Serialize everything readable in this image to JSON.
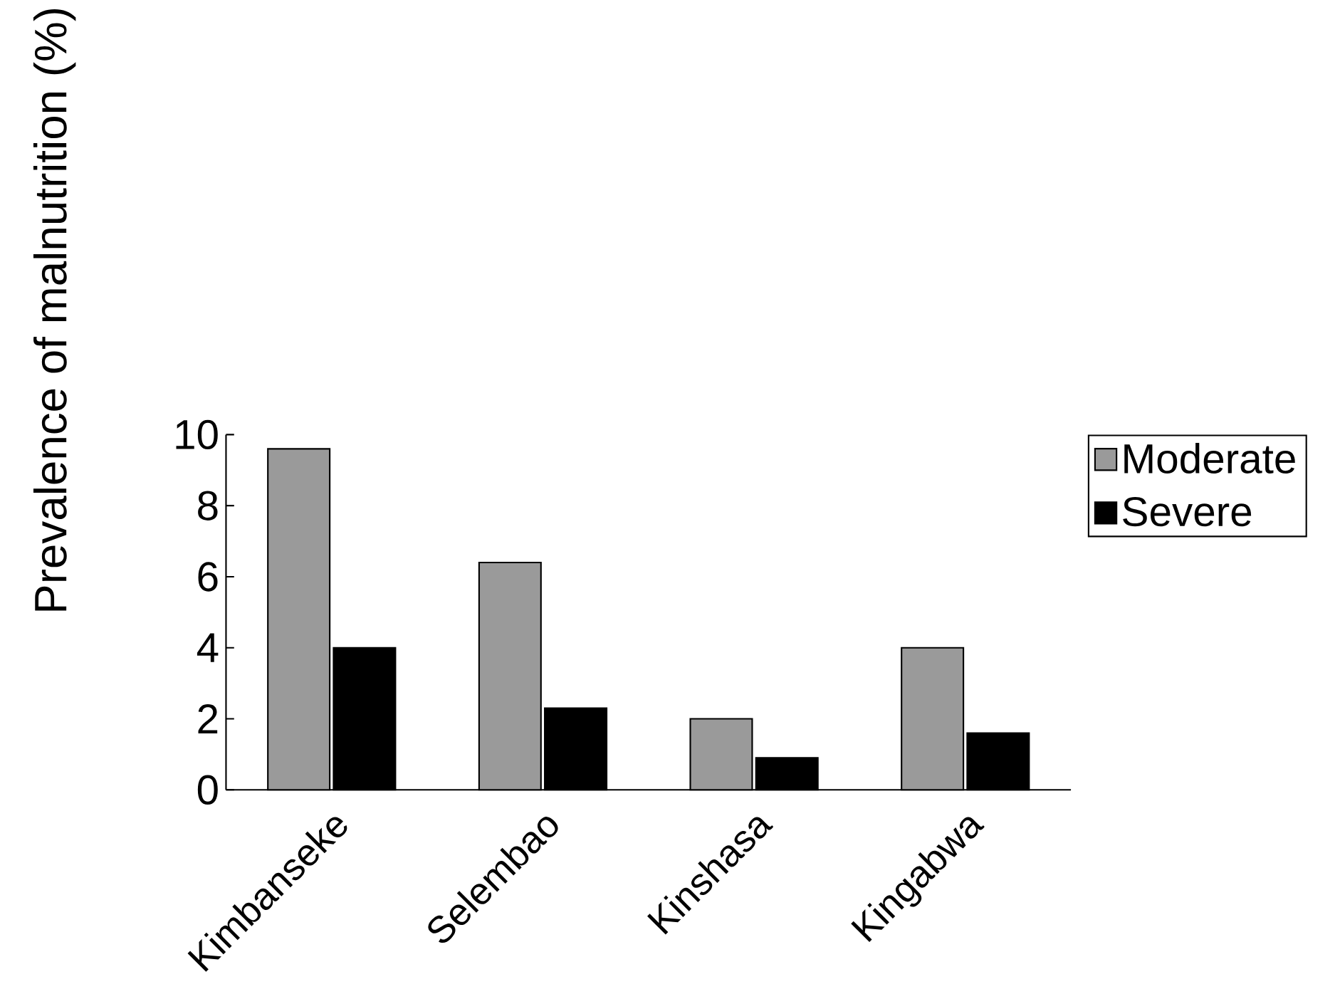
{
  "chart_data": {
    "type": "bar",
    "ylabel": "Prevalence of malnutrition (%)",
    "categories": [
      "Kimbanseke",
      "Selembao",
      "Kinshasa",
      "Kingabwa"
    ],
    "series": [
      {
        "name": "Moderate",
        "color": "#9a9a9a",
        "values": [
          9.6,
          6.4,
          2.0,
          4.0
        ]
      },
      {
        "name": "Severe",
        "color": "#000000",
        "values": [
          4.0,
          2.3,
          0.9,
          1.6
        ]
      }
    ],
    "ylim": [
      0,
      10
    ],
    "yticks": [
      0,
      2,
      4,
      6,
      8,
      10
    ],
    "legend": "top right"
  }
}
